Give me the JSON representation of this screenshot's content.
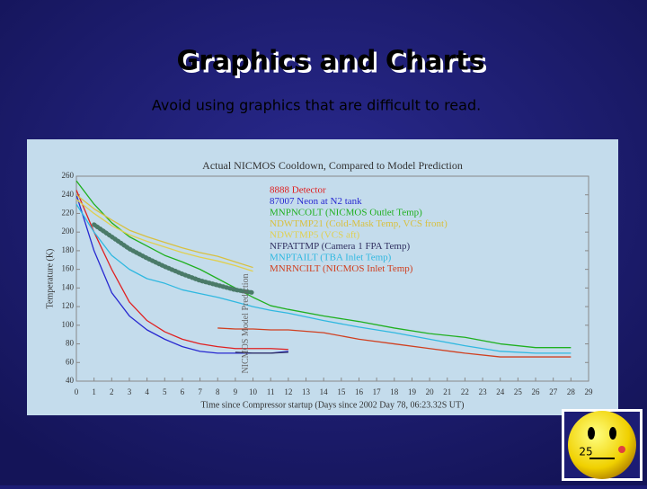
{
  "slide": {
    "title": "Graphics and Charts",
    "subtitle": "Avoid using graphics that are difficult to read.",
    "page_number": "25"
  },
  "chart_data": {
    "type": "line",
    "title": "Actual NICMOS Cooldown, Compared to Model Prediction",
    "x_label": "Time since Compressor startup (Days since 2002 Day 78, 06:23.32S UT)",
    "y_label": "Temperature (K)",
    "x": [
      0,
      1,
      2,
      3,
      4,
      5,
      6,
      7,
      8,
      9,
      10,
      11,
      12,
      14,
      16,
      18,
      20,
      22,
      24,
      26,
      28
    ],
    "xlim": [
      0,
      29
    ],
    "xticks": [
      0,
      1,
      2,
      3,
      4,
      5,
      6,
      7,
      8,
      9,
      10,
      11,
      12,
      13,
      14,
      15,
      16,
      17,
      18,
      19,
      20,
      21,
      22,
      23,
      24,
      25,
      26,
      27,
      28,
      29
    ],
    "ylim": [
      40,
      260
    ],
    "yticks": [
      40,
      60,
      80,
      100,
      120,
      140,
      160,
      180,
      200,
      220,
      240,
      260
    ],
    "series": [
      {
        "name": "8888 Detector",
        "color": "#e02020",
        "values": [
          245,
          200,
          160,
          125,
          105,
          93,
          85,
          80,
          77,
          75,
          75,
          75,
          74,
          null,
          null,
          null,
          null,
          null,
          null,
          null,
          null
        ]
      },
      {
        "name": "87007 Neon at N2 tank",
        "color": "#2828d0",
        "values": [
          240,
          180,
          135,
          110,
          95,
          85,
          77,
          72,
          70,
          70,
          70,
          70,
          72,
          null,
          null,
          null,
          null,
          null,
          null,
          null,
          null
        ]
      },
      {
        "name": "MNPNCOLT (NICMOS Outlet Temp)",
        "color": "#20b020",
        "values": [
          255,
          230,
          210,
          195,
          185,
          175,
          168,
          160,
          150,
          140,
          130,
          121,
          117,
          110,
          104,
          97,
          91,
          87,
          80,
          76,
          76
        ]
      },
      {
        "name": "NDWTMP21 (Cold-Mask Temp, VCS front)",
        "color": "#d8c040",
        "values": [
          240,
          225,
          213,
          202,
          195,
          189,
          183,
          178,
          174,
          168,
          162,
          null,
          null,
          null,
          null,
          null,
          null,
          null,
          null,
          null,
          null
        ]
      },
      {
        "name": "NDWTMP5 (VCS aft)",
        "color": "#e0d050",
        "values": [
          235,
          220,
          207,
          197,
          190,
          184,
          178,
          173,
          169,
          164,
          158,
          null,
          null,
          null,
          null,
          null,
          null,
          null,
          null,
          null,
          null
        ]
      },
      {
        "name": "NFPATTMP (Camera 1 FPA Temp)",
        "color": "#303060",
        "values": [
          null,
          null,
          null,
          null,
          null,
          null,
          null,
          null,
          null,
          71,
          70,
          70,
          71,
          null,
          null,
          null,
          null,
          null,
          null,
          null,
          null
        ]
      },
      {
        "name": "MNPTAILT (TBA Inlet Temp)",
        "color": "#30b8e0",
        "values": [
          230,
          200,
          175,
          160,
          150,
          145,
          138,
          134,
          130,
          125,
          120,
          116,
          113,
          105,
          98,
          92,
          85,
          78,
          72,
          70,
          70
        ]
      },
      {
        "name": "MNRNCILT (NICMOS Inlet Temp)",
        "color": "#d04020",
        "values": [
          null,
          null,
          null,
          null,
          null,
          null,
          null,
          null,
          97,
          96,
          96,
          95,
          95,
          92,
          85,
          80,
          75,
          70,
          66,
          66,
          66
        ]
      }
    ],
    "model": {
      "label": "NICMOS Model Prediction",
      "color": "#4a7a68",
      "values": [
        null,
        208,
        195,
        182,
        172,
        163,
        155,
        148,
        143,
        138,
        135,
        null,
        null,
        null,
        null,
        null,
        null,
        null,
        null,
        null,
        null
      ]
    }
  }
}
